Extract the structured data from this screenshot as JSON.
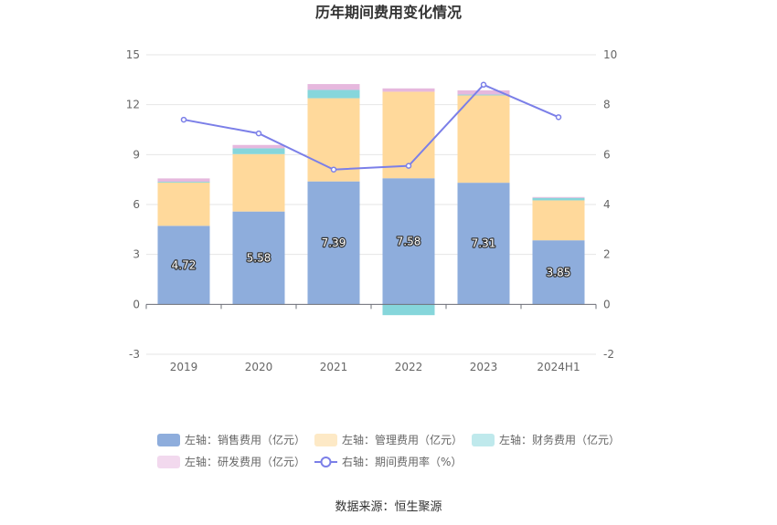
{
  "chart_data": {
    "type": "bar",
    "title": "历年期间费用变化情况",
    "categories": [
      "2019",
      "2020",
      "2021",
      "2022",
      "2023",
      "2024H1"
    ],
    "series": [
      {
        "name": "左轴：销售费用（亿元）",
        "axis": "left",
        "kind": "bar",
        "color": "#8eaddc",
        "values": [
          4.72,
          5.58,
          7.39,
          7.58,
          7.31,
          3.85
        ],
        "labels": [
          "4.72",
          "5.58",
          "7.39",
          "7.58",
          "7.31",
          "3.85"
        ]
      },
      {
        "name": "左轴：管理费用（亿元）",
        "axis": "left",
        "kind": "bar",
        "color": "#ffd99b",
        "legend_color": "#fde9c6",
        "values": [
          2.6,
          3.45,
          5.0,
          5.2,
          5.25,
          2.4
        ]
      },
      {
        "name": "左轴：财务费用（亿元）",
        "axis": "left",
        "kind": "bar",
        "color": "#86d6db",
        "legend_color": "#bfe9ec",
        "values": [
          0.05,
          0.35,
          0.5,
          -0.65,
          0.05,
          0.15
        ]
      },
      {
        "name": "左轴：研发费用（亿元）",
        "axis": "left",
        "kind": "bar",
        "color": "#e6b8de",
        "legend_color": "#f2d9ee",
        "values": [
          0.2,
          0.2,
          0.35,
          0.2,
          0.25,
          0.05
        ]
      },
      {
        "name": "右轴：期间费用率（%）",
        "axis": "right",
        "kind": "line",
        "color": "#7b7fe8",
        "values": [
          7.4,
          6.85,
          5.4,
          5.55,
          8.8,
          7.5
        ]
      }
    ],
    "left_axis": {
      "ylim": [
        -3,
        15
      ],
      "ticks": [
        "-3",
        "0",
        "3",
        "6",
        "9",
        "12",
        "15"
      ],
      "tick_values": [
        -3,
        0,
        3,
        6,
        9,
        12,
        15
      ]
    },
    "right_axis": {
      "ylim": [
        -2,
        10
      ],
      "ticks": [
        "-2",
        "0",
        "2",
        "4",
        "6",
        "8",
        "10"
      ],
      "tick_values": [
        -2,
        0,
        2,
        4,
        6,
        8,
        10
      ]
    },
    "grid": true,
    "legend_position": "bottom",
    "source": "数据来源：恒生聚源"
  }
}
